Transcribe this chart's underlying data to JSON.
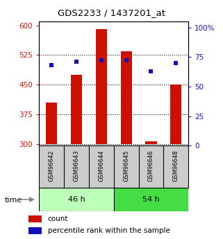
{
  "title": "GDS2233 / 1437201_at",
  "samples": [
    "GSM96642",
    "GSM96643",
    "GSM96644",
    "GSM96645",
    "GSM96646",
    "GSM96648"
  ],
  "counts": [
    405,
    475,
    590,
    535,
    307,
    450
  ],
  "percentiles": [
    68,
    71,
    72,
    72,
    63,
    70
  ],
  "bar_baseline": 300,
  "groups": [
    {
      "label": "46 h",
      "indices": [
        0,
        1,
        2
      ],
      "color": "#bbffbb"
    },
    {
      "label": "54 h",
      "indices": [
        3,
        4,
        5
      ],
      "color": "#44dd44"
    }
  ],
  "ylim_left": [
    295,
    610
  ],
  "ylim_right": [
    0,
    105
  ],
  "yticks_left": [
    300,
    375,
    450,
    525,
    600
  ],
  "yticks_right": [
    0,
    25,
    50,
    75,
    100
  ],
  "ytick_labels_right": [
    "0",
    "25",
    "50",
    "75",
    "100%"
  ],
  "bar_color": "#cc1100",
  "marker_color": "#1111bb",
  "grid_color": "#000000",
  "bg_plot": "#ffffff",
  "bg_xtick": "#cccccc",
  "left_tick_color": "#cc1100",
  "right_tick_color": "#1111bb",
  "legend_items": [
    "count",
    "percentile rank within the sample"
  ],
  "time_label": "time",
  "figsize": [
    3.21,
    3.45
  ],
  "dpi": 100
}
